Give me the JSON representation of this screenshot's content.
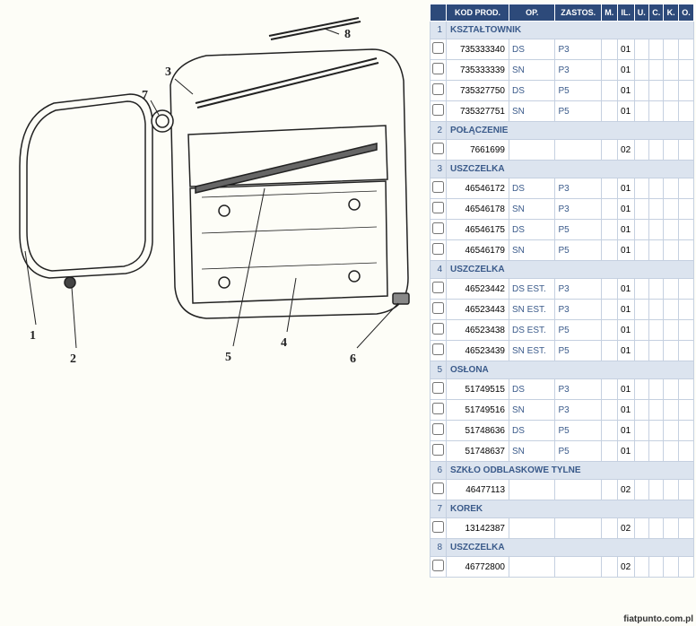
{
  "headers": [
    "",
    "KOD PROD.",
    "OP.",
    "ZASTOS.",
    "M.",
    "IL.",
    "U.",
    "C.",
    "K.",
    "O."
  ],
  "sections": [
    {
      "num": "1",
      "name": "KSZTAŁTOWNIK",
      "rows": [
        {
          "code": "735333340",
          "op": "DS",
          "zas": "P3",
          "il": "01"
        },
        {
          "code": "735333339",
          "op": "SN",
          "zas": "P3",
          "il": "01"
        },
        {
          "code": "735327750",
          "op": "DS",
          "zas": "P5",
          "il": "01"
        },
        {
          "code": "735327751",
          "op": "SN",
          "zas": "P5",
          "il": "01"
        }
      ]
    },
    {
      "num": "2",
      "name": "POŁĄCZENIE",
      "rows": [
        {
          "code": "7661699",
          "op": "",
          "zas": "",
          "il": "02"
        }
      ]
    },
    {
      "num": "3",
      "name": "USZCZELKA",
      "rows": [
        {
          "code": "46546172",
          "op": "DS",
          "zas": "P3",
          "il": "01"
        },
        {
          "code": "46546178",
          "op": "SN",
          "zas": "P3",
          "il": "01"
        },
        {
          "code": "46546175",
          "op": "DS",
          "zas": "P5",
          "il": "01"
        },
        {
          "code": "46546179",
          "op": "SN",
          "zas": "P5",
          "il": "01"
        }
      ]
    },
    {
      "num": "4",
      "name": "USZCZELKA",
      "rows": [
        {
          "code": "46523442",
          "op": "DS EST.",
          "zas": "P3",
          "il": "01"
        },
        {
          "code": "46523443",
          "op": "SN EST.",
          "zas": "P3",
          "il": "01"
        },
        {
          "code": "46523438",
          "op": "DS EST.",
          "zas": "P5",
          "il": "01"
        },
        {
          "code": "46523439",
          "op": "SN EST.",
          "zas": "P5",
          "il": "01"
        }
      ]
    },
    {
      "num": "5",
      "name": "OSŁONA",
      "rows": [
        {
          "code": "51749515",
          "op": "DS",
          "zas": "P3",
          "il": "01"
        },
        {
          "code": "51749516",
          "op": "SN",
          "zas": "P3",
          "il": "01"
        },
        {
          "code": "51748636",
          "op": "DS",
          "zas": "P5",
          "il": "01"
        },
        {
          "code": "51748637",
          "op": "SN",
          "zas": "P5",
          "il": "01"
        }
      ]
    },
    {
      "num": "6",
      "name": "SZKŁO ODBLASKOWE TYLNE",
      "rows": [
        {
          "code": "46477113",
          "op": "",
          "zas": "",
          "il": "02"
        }
      ]
    },
    {
      "num": "7",
      "name": "KOREK",
      "rows": [
        {
          "code": "13142387",
          "op": "",
          "zas": "",
          "il": "02"
        }
      ]
    },
    {
      "num": "8",
      "name": "USZCZELKA",
      "rows": [
        {
          "code": "46772800",
          "op": "",
          "zas": "",
          "il": "02"
        }
      ]
    }
  ],
  "watermark": "fiatpunto.com.pl",
  "callouts": [
    "1",
    "2",
    "3",
    "4",
    "5",
    "6",
    "7",
    "8"
  ]
}
